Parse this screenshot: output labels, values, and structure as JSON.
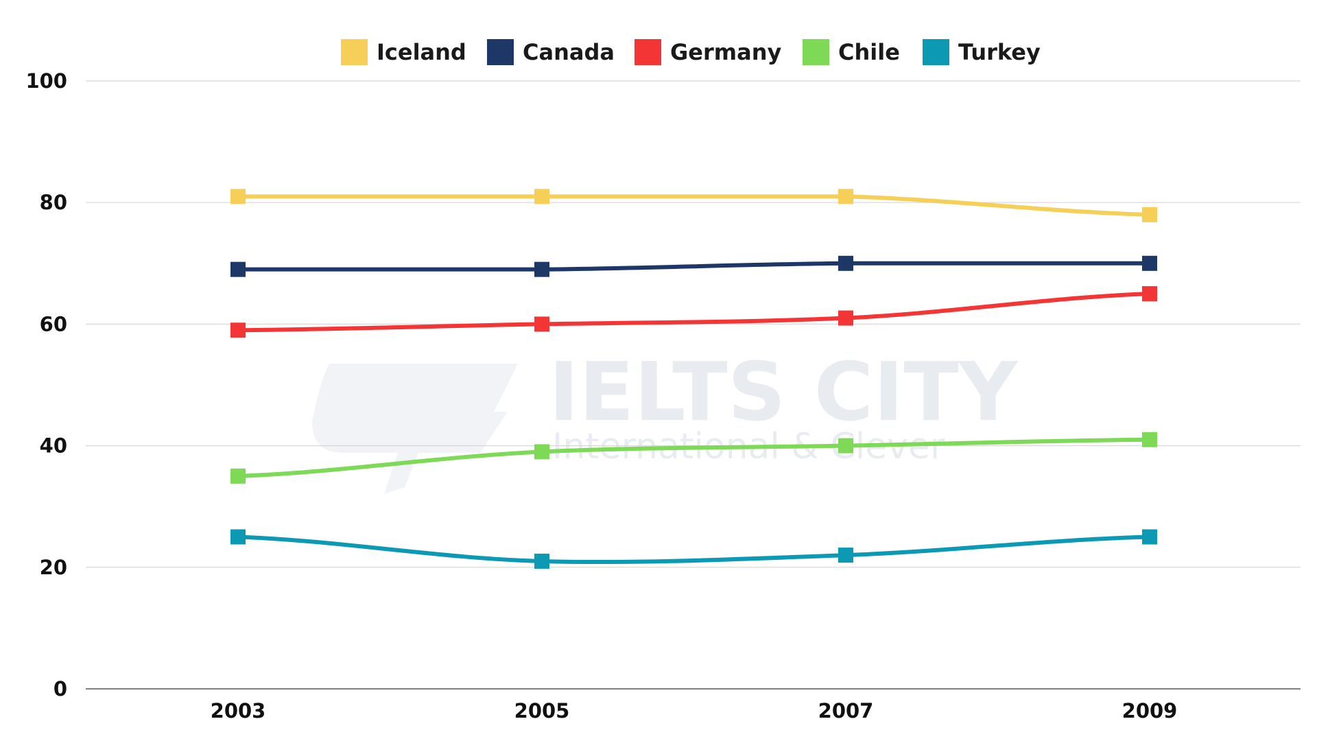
{
  "chart_data": {
    "type": "line",
    "x": [
      "2003",
      "2005",
      "2007",
      "2009"
    ],
    "ylim": [
      0,
      100
    ],
    "yticks": [
      "0",
      "20",
      "40",
      "60",
      "80",
      "100"
    ],
    "grid": true,
    "legend_position": "top-center",
    "series": [
      {
        "name": "Iceland",
        "color": "#F5CF57",
        "values": [
          81,
          81,
          81,
          78
        ]
      },
      {
        "name": "Canada",
        "color": "#1D3767",
        "values": [
          69,
          69,
          70,
          70
        ]
      },
      {
        "name": "Germany",
        "color": "#F43535",
        "values": [
          59,
          60,
          61,
          65
        ]
      },
      {
        "name": "Chile",
        "color": "#7ED957",
        "values": [
          35,
          39,
          40,
          41
        ]
      },
      {
        "name": "Turkey",
        "color": "#0B99B4",
        "values": [
          25,
          21,
          22,
          25
        ]
      }
    ],
    "marker": "square",
    "smooth": true
  },
  "watermark": {
    "title": "IELTS CITY",
    "subtitle": "International & Clever"
  }
}
